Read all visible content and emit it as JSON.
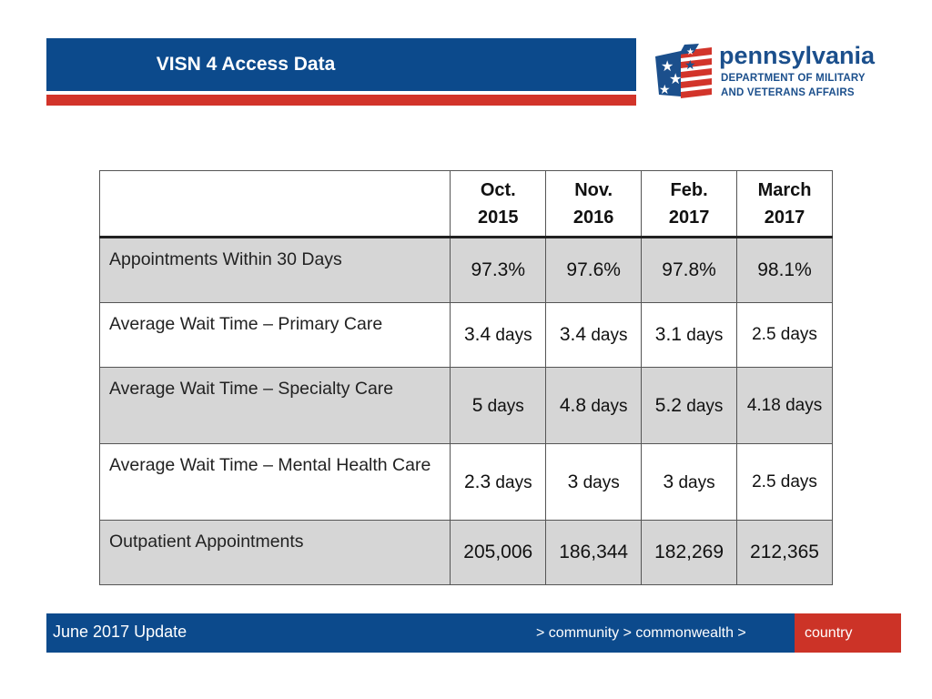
{
  "header": {
    "title": "VISN 4 Access Data"
  },
  "logo": {
    "name": "pennsylvania",
    "line1": "DEPARTMENT OF MILITARY",
    "line2": "AND VETERANS AFFAIRS",
    "colors": {
      "blue": "#1b4f8c",
      "red": "#d2342a"
    }
  },
  "table": {
    "columns": [
      {
        "line1": "Oct.",
        "line2": "2015"
      },
      {
        "line1": "Nov.",
        "line2": "2016"
      },
      {
        "line1": "Feb.",
        "line2": "2017"
      },
      {
        "line1": "March",
        "line2": "2017"
      }
    ],
    "rows": [
      {
        "label": "Appointments Within 30 Days",
        "cells": [
          {
            "num": "97.3%",
            "unit": ""
          },
          {
            "num": "97.6%",
            "unit": ""
          },
          {
            "num": "97.8%",
            "unit": ""
          },
          {
            "num": "98.1%",
            "unit": ""
          }
        ]
      },
      {
        "label": "Average Wait Time – Primary Care",
        "cells": [
          {
            "num": "3.4",
            "unit": " days"
          },
          {
            "num": "3.4",
            "unit": " days"
          },
          {
            "num": "3.1",
            "unit": " days"
          },
          {
            "num": "2.5 days",
            "unit": ""
          }
        ]
      },
      {
        "label": "Average Wait Time – Specialty Care",
        "cells": [
          {
            "num": "5",
            "unit": " days"
          },
          {
            "num": "4.8",
            "unit": " days"
          },
          {
            "num": "5.2",
            "unit": " days"
          },
          {
            "num": "4.18 days",
            "unit": ""
          }
        ]
      },
      {
        "label": "Average Wait Time – Mental Health Care",
        "cells": [
          {
            "num": "2.3",
            "unit": " days"
          },
          {
            "num": "3",
            "unit": " days"
          },
          {
            "num": "3",
            "unit": " days"
          },
          {
            "num": "2.5 days",
            "unit": ""
          }
        ]
      },
      {
        "label": "Outpatient Appointments",
        "cells": [
          {
            "num": "205,006",
            "unit": ""
          },
          {
            "num": "186,344",
            "unit": ""
          },
          {
            "num": "182,269",
            "unit": ""
          },
          {
            "num": "212,365",
            "unit": ""
          }
        ]
      }
    ]
  },
  "footer": {
    "left": "June 2017 Update",
    "nav": "> community > commonwealth >",
    "highlight": "country",
    "colors": {
      "bar": "#0c4a8c",
      "highlight": "#cc3327"
    }
  }
}
